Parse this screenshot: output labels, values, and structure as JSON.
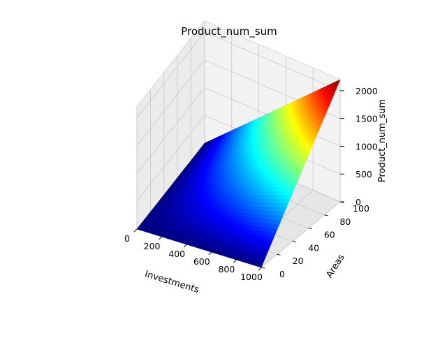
{
  "chart_data": {
    "type": "surface3d",
    "title": "Product_num_sum",
    "xlabel": "Investments",
    "ylabel": "Areas",
    "zlabel": "Product_num_sum",
    "x_ticks": [
      "0",
      "200",
      "400",
      "600",
      "800",
      "1000"
    ],
    "y_ticks": [
      "0",
      "20",
      "40",
      "60",
      "80",
      "100"
    ],
    "z_ticks": [
      "0",
      "500",
      "1000",
      "1500",
      "2000"
    ],
    "xlim": [
      0,
      1000
    ],
    "ylim": [
      0,
      100
    ],
    "zlim": [
      0,
      2200
    ],
    "colormap": "jet",
    "grid": true,
    "surface_samples": {
      "x": [
        0,
        200,
        400,
        600,
        800,
        1000
      ],
      "y": [
        0,
        20,
        40,
        60,
        80,
        100
      ],
      "z": [
        [
          0,
          0,
          0,
          0,
          0,
          0
        ],
        [
          0,
          90,
          180,
          260,
          350,
          440
        ],
        [
          0,
          180,
          360,
          520,
          700,
          880
        ],
        [
          0,
          270,
          530,
          790,
          1050,
          1320
        ],
        [
          0,
          350,
          710,
          1050,
          1400,
          1760
        ],
        [
          0,
          440,
          880,
          1320,
          1760,
          2200
        ]
      ]
    }
  }
}
